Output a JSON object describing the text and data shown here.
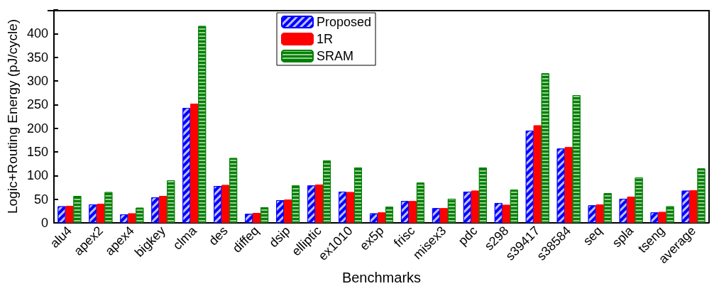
{
  "chart_data": {
    "type": "bar",
    "xlabel": "Benchmarks",
    "ylabel": "Logic+Routing Energy (pJ/cycle)",
    "categories": [
      "alu4",
      "apex2",
      "apex4",
      "bigkey",
      "clma",
      "des",
      "diffeq",
      "dsip",
      "elliptic",
      "ex1010",
      "ex5p",
      "frisc",
      "misex3",
      "pdc",
      "s298",
      "s39417",
      "s38584",
      "seq",
      "spla",
      "tseng",
      "average"
    ],
    "series": [
      {
        "name": "Proposed",
        "color": "#0000ff",
        "values": [
          35,
          39,
          18,
          54,
          243,
          78,
          19,
          48,
          79,
          66,
          20,
          46,
          31,
          66,
          42,
          195,
          157,
          37,
          51,
          22,
          68
        ]
      },
      {
        "name": "1R",
        "color": "#ff0000",
        "values": [
          36,
          40,
          20,
          57,
          252,
          80,
          21,
          49,
          81,
          65,
          22,
          46,
          31,
          68,
          38,
          206,
          160,
          39,
          55,
          23,
          69
        ]
      },
      {
        "name": "SRAM",
        "color": "#008000",
        "values": [
          57,
          65,
          32,
          90,
          416,
          137,
          33,
          79,
          132,
          117,
          34,
          85,
          51,
          117,
          70,
          316,
          270,
          63,
          96,
          35,
          115
        ]
      }
    ],
    "ylim": [
      0,
      450
    ],
    "yticks": [
      0,
      50,
      100,
      150,
      200,
      250,
      300,
      350,
      400,
      {
        "value": 450,
        "label": null
      }
    ],
    "grid": false,
    "legend": "top"
  }
}
